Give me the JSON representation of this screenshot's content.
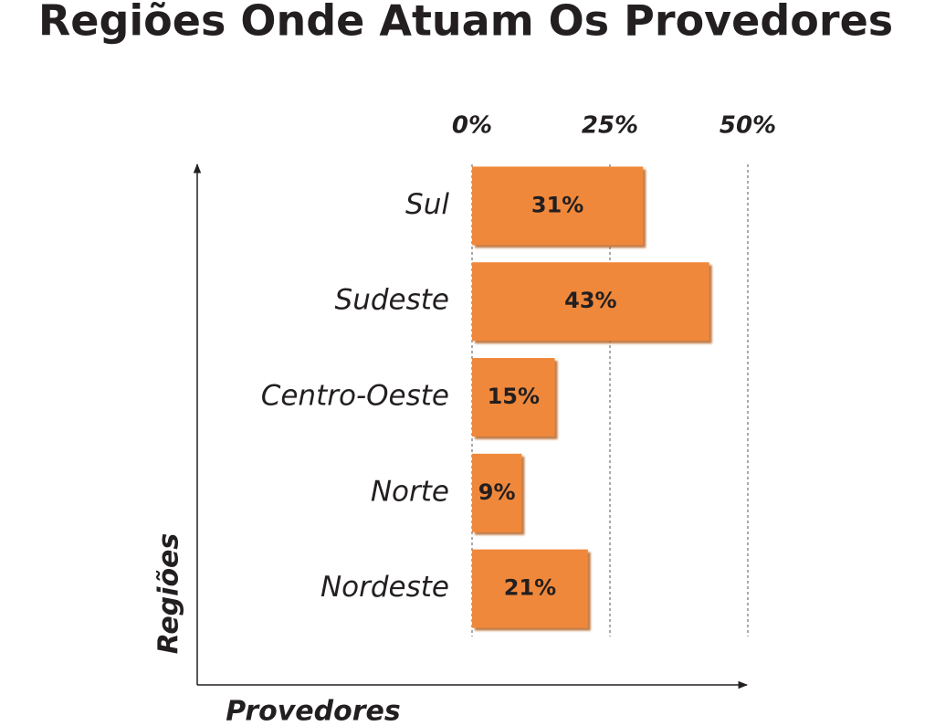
{
  "chart_data": {
    "type": "bar",
    "orientation": "horizontal",
    "title": "Regiões Onde Atuam Os Provedores",
    "x_label": "Provedores",
    "y_label": "Regiões",
    "categories": [
      "Sul",
      "Sudeste",
      "Centro-Oeste",
      "Norte",
      "Nordeste"
    ],
    "values": [
      31,
      43,
      15,
      9,
      21
    ],
    "value_labels": [
      "31%",
      "43%",
      "15%",
      "9%",
      "21%"
    ],
    "color": "#f0883a",
    "xlim": [
      0,
      50
    ],
    "xticks": [
      {
        "value": 0,
        "label": "0%"
      },
      {
        "value": 25,
        "label": "25%"
      },
      {
        "value": 50,
        "label": "50%"
      }
    ],
    "grid": true
  }
}
